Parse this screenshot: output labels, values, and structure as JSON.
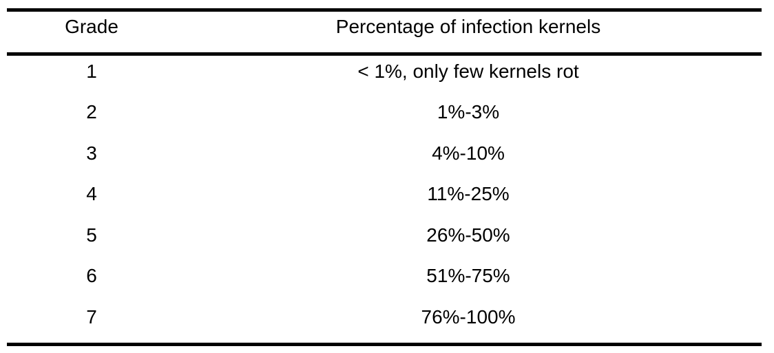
{
  "table": {
    "headers": [
      "Grade",
      "Percentage of infection kernels"
    ],
    "rows": [
      [
        "1",
        "< 1%, only few kernels rot"
      ],
      [
        "2",
        "1%-3%"
      ],
      [
        "3",
        "4%-10%"
      ],
      [
        "4",
        "11%-25%"
      ],
      [
        "5",
        "26%-50%"
      ],
      [
        "6",
        "51%-75%"
      ],
      [
        "7",
        "76%-100%"
      ]
    ]
  }
}
